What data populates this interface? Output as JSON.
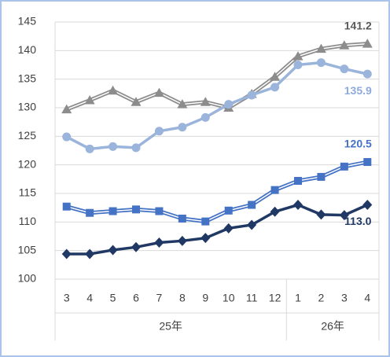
{
  "chart_data": {
    "type": "line",
    "categories": [
      "3",
      "4",
      "5",
      "6",
      "7",
      "8",
      "9",
      "10",
      "11",
      "12",
      "1",
      "2",
      "3",
      "4"
    ],
    "group_labels": [
      "25年",
      "26年"
    ],
    "group_sizes": [
      10,
      4
    ],
    "ylim": [
      100,
      145
    ],
    "yticks": [
      100,
      105,
      110,
      115,
      120,
      125,
      130,
      135,
      140,
      145
    ],
    "grid": true,
    "series": [
      {
        "color": "#8c8c8c",
        "marker": "triangle",
        "label_color": "#595959",
        "values": [
          129.7,
          131.3,
          133.0,
          131.0,
          132.6,
          130.6,
          131.0,
          130.0,
          132.4,
          135.4,
          139.0,
          140.3,
          140.9,
          141.2
        ],
        "value_labels": [
          null,
          null,
          null,
          null,
          null,
          null,
          null,
          null,
          null,
          null,
          null,
          null,
          null,
          "141.2"
        ]
      },
      {
        "color": "#9ab4dc",
        "marker": "circle",
        "label_color": "#8eaadb",
        "values": [
          124.9,
          122.8,
          123.2,
          123.0,
          125.9,
          126.6,
          128.3,
          130.6,
          132.2,
          133.6,
          137.5,
          137.9,
          136.8,
          135.9
        ],
        "value_labels": [
          null,
          null,
          null,
          null,
          null,
          null,
          null,
          null,
          null,
          null,
          null,
          null,
          null,
          "135.9"
        ]
      },
      {
        "color": "#4472c4",
        "marker": "square",
        "label_color": "#4472c4",
        "values": [
          112.7,
          111.6,
          111.9,
          112.2,
          111.9,
          110.6,
          110.1,
          112.0,
          113.0,
          115.6,
          117.2,
          117.9,
          119.7,
          120.5
        ],
        "value_labels": [
          null,
          null,
          null,
          null,
          null,
          null,
          null,
          null,
          null,
          null,
          null,
          null,
          null,
          "120.5"
        ]
      },
      {
        "color": "#203864",
        "marker": "diamond",
        "label_color": "#203864",
        "values": [
          104.4,
          104.4,
          105.1,
          105.6,
          106.4,
          106.7,
          107.2,
          108.9,
          109.5,
          111.8,
          113.0,
          111.3,
          111.2,
          113.0
        ],
        "value_labels": [
          null,
          null,
          null,
          null,
          null,
          null,
          null,
          null,
          null,
          null,
          null,
          null,
          null,
          "113.0"
        ]
      }
    ]
  }
}
